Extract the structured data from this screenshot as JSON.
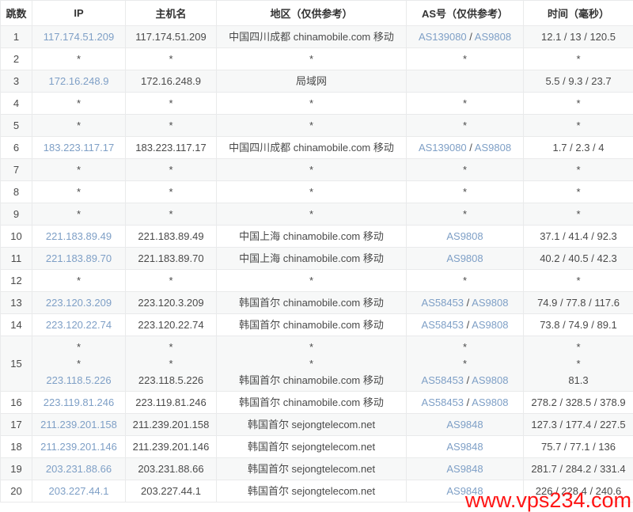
{
  "watermark": {
    "text": "www.vps234.com"
  },
  "colors": {
    "link": "#7e9fc6",
    "row_alt": "#f7f8f8",
    "border": "#e9eaeb",
    "text": "#4a4a4a",
    "header_text": "#333333",
    "watermark": "#ff1414"
  },
  "table": {
    "headers": [
      "跳数",
      "IP",
      "主机名",
      "地区（仅供参考）",
      "AS号（仅供参考）",
      "时间（毫秒）"
    ],
    "rows": [
      {
        "hop": "1",
        "ip": [
          "117.174.51.209"
        ],
        "host": [
          "117.174.51.209"
        ],
        "region": [
          "中国四川成都 chinamobile.com 移动"
        ],
        "as": [
          "AS139080 / AS9808"
        ],
        "time": [
          "12.1 / 13 / 120.5"
        ]
      },
      {
        "hop": "2",
        "ip": [
          "*"
        ],
        "host": [
          "*"
        ],
        "region": [
          "*"
        ],
        "as": [
          "*"
        ],
        "time": [
          "*"
        ]
      },
      {
        "hop": "3",
        "ip": [
          "172.16.248.9"
        ],
        "host": [
          "172.16.248.9"
        ],
        "region": [
          "局域网"
        ],
        "as": [
          ""
        ],
        "time": [
          "5.5 / 9.3 / 23.7"
        ]
      },
      {
        "hop": "4",
        "ip": [
          "*"
        ],
        "host": [
          "*"
        ],
        "region": [
          "*"
        ],
        "as": [
          "*"
        ],
        "time": [
          "*"
        ]
      },
      {
        "hop": "5",
        "ip": [
          "*"
        ],
        "host": [
          "*"
        ],
        "region": [
          "*"
        ],
        "as": [
          "*"
        ],
        "time": [
          "*"
        ]
      },
      {
        "hop": "6",
        "ip": [
          "183.223.117.17"
        ],
        "host": [
          "183.223.117.17"
        ],
        "region": [
          "中国四川成都 chinamobile.com 移动"
        ],
        "as": [
          "AS139080 / AS9808"
        ],
        "time": [
          "1.7 / 2.3 / 4"
        ]
      },
      {
        "hop": "7",
        "ip": [
          "*"
        ],
        "host": [
          "*"
        ],
        "region": [
          "*"
        ],
        "as": [
          "*"
        ],
        "time": [
          "*"
        ]
      },
      {
        "hop": "8",
        "ip": [
          "*"
        ],
        "host": [
          "*"
        ],
        "region": [
          "*"
        ],
        "as": [
          "*"
        ],
        "time": [
          "*"
        ]
      },
      {
        "hop": "9",
        "ip": [
          "*"
        ],
        "host": [
          "*"
        ],
        "region": [
          "*"
        ],
        "as": [
          "*"
        ],
        "time": [
          "*"
        ]
      },
      {
        "hop": "10",
        "ip": [
          "221.183.89.49"
        ],
        "host": [
          "221.183.89.49"
        ],
        "region": [
          "中国上海 chinamobile.com 移动"
        ],
        "as": [
          "AS9808"
        ],
        "time": [
          "37.1 / 41.4 / 92.3"
        ]
      },
      {
        "hop": "11",
        "ip": [
          "221.183.89.70"
        ],
        "host": [
          "221.183.89.70"
        ],
        "region": [
          "中国上海 chinamobile.com 移动"
        ],
        "as": [
          "AS9808"
        ],
        "time": [
          "40.2 / 40.5 / 42.3"
        ]
      },
      {
        "hop": "12",
        "ip": [
          "*"
        ],
        "host": [
          "*"
        ],
        "region": [
          "*"
        ],
        "as": [
          "*"
        ],
        "time": [
          "*"
        ]
      },
      {
        "hop": "13",
        "ip": [
          "223.120.3.209"
        ],
        "host": [
          "223.120.3.209"
        ],
        "region": [
          "韩国首尔 chinamobile.com 移动"
        ],
        "as": [
          "AS58453 / AS9808"
        ],
        "time": [
          "74.9 / 77.8 / 117.6"
        ]
      },
      {
        "hop": "14",
        "ip": [
          "223.120.22.74"
        ],
        "host": [
          "223.120.22.74"
        ],
        "region": [
          "韩国首尔 chinamobile.com 移动"
        ],
        "as": [
          "AS58453 / AS9808"
        ],
        "time": [
          "73.8 / 74.9 / 89.1"
        ]
      },
      {
        "hop": "15",
        "ip": [
          "*",
          "*",
          "223.118.5.226"
        ],
        "host": [
          "*",
          "*",
          "223.118.5.226"
        ],
        "region": [
          "*",
          "*",
          "韩国首尔 chinamobile.com 移动"
        ],
        "as": [
          "*",
          "*",
          "AS58453 / AS9808"
        ],
        "time": [
          "*",
          "*",
          "81.3"
        ]
      },
      {
        "hop": "16",
        "ip": [
          "223.119.81.246"
        ],
        "host": [
          "223.119.81.246"
        ],
        "region": [
          "韩国首尔 chinamobile.com 移动"
        ],
        "as": [
          "AS58453 / AS9808"
        ],
        "time": [
          "278.2 / 328.5 / 378.9"
        ]
      },
      {
        "hop": "17",
        "ip": [
          "211.239.201.158"
        ],
        "host": [
          "211.239.201.158"
        ],
        "region": [
          "韩国首尔 sejongtelecom.net"
        ],
        "as": [
          "AS9848"
        ],
        "time": [
          "127.3 / 177.4 / 227.5"
        ]
      },
      {
        "hop": "18",
        "ip": [
          "211.239.201.146"
        ],
        "host": [
          "211.239.201.146"
        ],
        "region": [
          "韩国首尔 sejongtelecom.net"
        ],
        "as": [
          "AS9848"
        ],
        "time": [
          "75.7 / 77.1 / 136"
        ]
      },
      {
        "hop": "19",
        "ip": [
          "203.231.88.66"
        ],
        "host": [
          "203.231.88.66"
        ],
        "region": [
          "韩国首尔 sejongtelecom.net"
        ],
        "as": [
          "AS9848"
        ],
        "time": [
          "281.7 / 284.2 / 331.4"
        ]
      },
      {
        "hop": "20",
        "ip": [
          "203.227.44.1"
        ],
        "host": [
          "203.227.44.1"
        ],
        "region": [
          "韩国首尔 sejongtelecom.net"
        ],
        "as": [
          "AS9848"
        ],
        "time": [
          "226 / 228.4 / 240.6"
        ]
      }
    ]
  }
}
